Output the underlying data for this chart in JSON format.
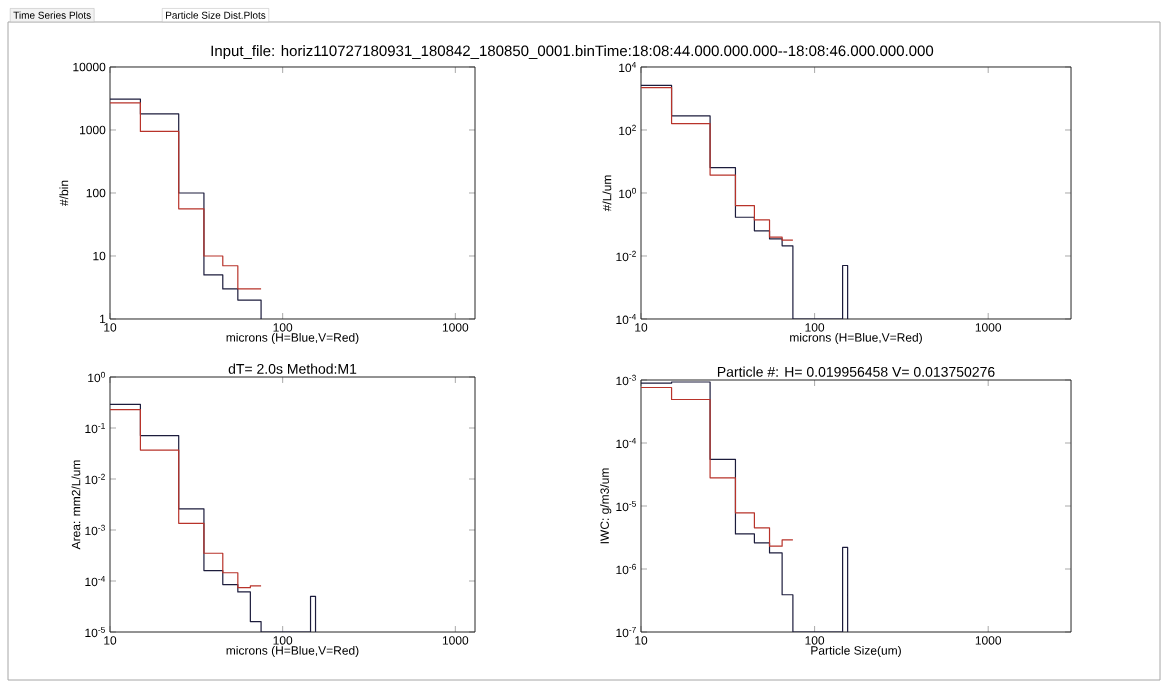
{
  "chart_data": [
    {
      "type": "step",
      "title": "Input_file: horiz110727180931_180842_180850_0001.binTime:18:08:44.000.000.000--18:08:46.000.000.000",
      "annotations": [
        "Time Series Plots",
        "Particle Size Dist.Plots"
      ],
      "xlabel": "microns (H=Blue,V=Red)",
      "ylabel": "#/bin",
      "log": "xy",
      "xlim": [
        10,
        1300
      ],
      "xticks": [
        10,
        100,
        1000
      ],
      "ylim": [
        1,
        10000
      ],
      "yticks": [
        1,
        10,
        100,
        1000,
        10000
      ],
      "series": [
        {
          "color": "#1c1c3c",
          "x": [
            10,
            15,
            25,
            35,
            45,
            55,
            65,
            75
          ],
          "values": [
            3100,
            1800,
            100,
            5,
            3,
            2,
            2,
            1
          ]
        },
        {
          "color": "#b8332a",
          "x": [
            10,
            15,
            25,
            35,
            45,
            55,
            65,
            75
          ],
          "values": [
            2700,
            950,
            56,
            10,
            7,
            3,
            3,
            3
          ]
        }
      ]
    },
    {
      "type": "step",
      "xlabel": "microns (H=Blue,V=Red)",
      "ylabel": "#/L/um",
      "log": "xy",
      "xlim": [
        10,
        3000
      ],
      "xticks": [
        10,
        100,
        1000
      ],
      "ylim": [
        0.0001,
        10000
      ],
      "yticks": [
        {
          "value": 0.0001,
          "label": "10$^{-4}$"
        },
        {
          "value": 0.01,
          "label": "10$^{-2}$"
        },
        {
          "value": 1,
          "label": "10$^{0}$"
        },
        {
          "value": 100,
          "label": "10$^{2}$"
        },
        {
          "value": 10000,
          "label": "10$^{4}$"
        }
      ],
      "series": [
        {
          "color": "#1c1c3c",
          "x": [
            10,
            15,
            25,
            35,
            45,
            55,
            65,
            75,
            145,
            155
          ],
          "values": [
            2600,
            280,
            6.4,
            0.17,
            0.063,
            0.035,
            0.021,
            0.0001,
            0.005,
            0.0001
          ]
        },
        {
          "color": "#b8332a",
          "x": [
            10,
            15,
            25,
            35,
            45,
            55,
            65,
            75
          ],
          "values": [
            2200,
            160,
            3.7,
            0.4,
            0.14,
            0.04,
            0.032,
            0.032
          ]
        }
      ]
    },
    {
      "type": "step",
      "title": "dT= 2.0s Method:M1",
      "xlabel": "microns (H=Blue,V=Red)",
      "ylabel": "Area: mm2/L/um",
      "log": "xy",
      "xlim": [
        10,
        1300
      ],
      "xticks": [
        10,
        100,
        1000
      ],
      "ylim": [
        1e-05,
        1
      ],
      "yticks": [
        {
          "value": 1e-05,
          "label": "10$^{-5}$"
        },
        {
          "value": 0.0001,
          "label": "10$^{-4}$"
        },
        {
          "value": 0.001,
          "label": "10$^{-3}$"
        },
        {
          "value": 0.01,
          "label": "10$^{-2}$"
        },
        {
          "value": 0.1,
          "label": "10$^{-1}$"
        },
        {
          "value": 1,
          "label": "10$^{0}$"
        }
      ],
      "series": [
        {
          "color": "#1c1c3c",
          "x": [
            10,
            15,
            25,
            35,
            45,
            55,
            65,
            75,
            145,
            155
          ],
          "values": [
            0.29,
            0.071,
            0.0026,
            0.00016,
            8.5e-05,
            6.1e-05,
            1.6e-05,
            1e-05,
            5e-05,
            1e-05
          ]
        },
        {
          "color": "#b8332a",
          "x": [
            10,
            15,
            25,
            35,
            45,
            55,
            65,
            75
          ],
          "values": [
            0.23,
            0.037,
            0.00135,
            0.00035,
            0.000145,
            7.4e-05,
            8e-05,
            8e-05
          ]
        }
      ]
    },
    {
      "type": "step",
      "title": "Particle #: H= 0.019956458 V= 0.013750276",
      "xlabel": "Particle Size(um)",
      "ylabel": "IWC: g/m3/um",
      "log": "xy",
      "xlim": [
        10,
        3000
      ],
      "xticks": [
        10,
        100,
        1000
      ],
      "ylim": [
        1e-07,
        0.001
      ],
      "yticks": [
        {
          "value": 1e-07,
          "label": "10$^{-7}$"
        },
        {
          "value": 1e-06,
          "label": "10$^{-6}$"
        },
        {
          "value": 1e-05,
          "label": "10$^{-5}$"
        },
        {
          "value": 0.0001,
          "label": "10$^{-4}$"
        },
        {
          "value": 0.001,
          "label": "10$^{-3}$"
        }
      ],
      "series": [
        {
          "color": "#1c1c3c",
          "x": [
            10,
            15,
            25,
            35,
            45,
            55,
            65,
            75,
            145,
            155
          ],
          "values": [
            0.00089,
            0.00093,
            5.5e-05,
            3.6e-06,
            2.6e-06,
            1.8e-06,
            3.9e-07,
            1e-07,
            2.2e-06,
            1e-07
          ]
        },
        {
          "color": "#b8332a",
          "x": [
            10,
            15,
            25,
            35,
            45,
            55,
            65,
            75
          ],
          "values": [
            0.00076,
            0.00049,
            2.8e-05,
            7.8e-06,
            4.5e-06,
            2.3e-06,
            2.9e-06,
            2.9e-06
          ]
        }
      ]
    }
  ]
}
